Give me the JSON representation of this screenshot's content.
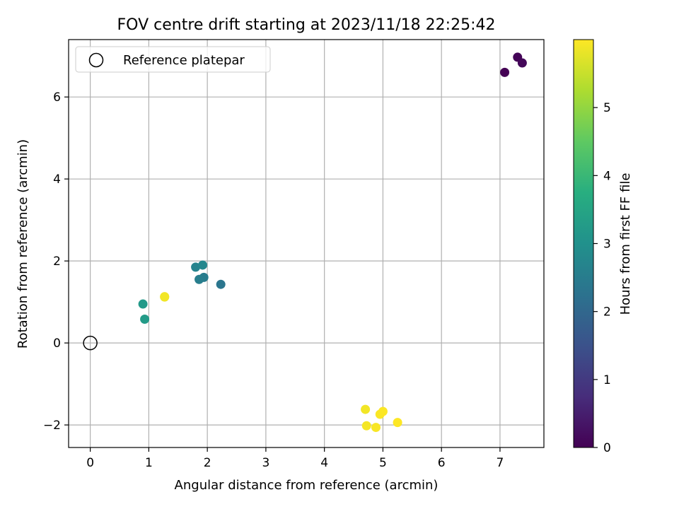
{
  "chart_data": {
    "type": "scatter",
    "title": "FOV centre drift starting at 2023/11/18 22:25:42",
    "xlabel": "Angular distance from reference (arcmin)",
    "ylabel": "Rotation from reference (arcmin)",
    "xlim": [
      -0.37,
      7.75
    ],
    "ylim": [
      -2.55,
      7.4
    ],
    "xticks": [
      0,
      1,
      2,
      3,
      4,
      5,
      6,
      7
    ],
    "yticks": [
      -2,
      0,
      2,
      4,
      6
    ],
    "grid": true,
    "legend": {
      "placement": "top-left",
      "entries": [
        {
          "label": "Reference platepar",
          "marker": "open-circle"
        }
      ]
    },
    "reference_point": {
      "x": 0,
      "y": 0
    },
    "colorbar": {
      "label": "Hours from first FF file",
      "range": [
        0,
        6.0
      ],
      "ticks": [
        0,
        1,
        2,
        3,
        4,
        5
      ],
      "colormap": "viridis"
    },
    "points": [
      {
        "x": 7.08,
        "y": 6.6,
        "hours": 0.0
      },
      {
        "x": 7.3,
        "y": 6.97,
        "hours": 0.05
      },
      {
        "x": 7.38,
        "y": 6.83,
        "hours": 0.1
      },
      {
        "x": 2.23,
        "y": 1.43,
        "hours": 2.35
      },
      {
        "x": 1.94,
        "y": 1.6,
        "hours": 2.5
      },
      {
        "x": 1.86,
        "y": 1.55,
        "hours": 2.55
      },
      {
        "x": 1.8,
        "y": 1.85,
        "hours": 2.65
      },
      {
        "x": 1.92,
        "y": 1.9,
        "hours": 2.75
      },
      {
        "x": 0.9,
        "y": 0.95,
        "hours": 3.2
      },
      {
        "x": 0.93,
        "y": 0.58,
        "hours": 3.25
      },
      {
        "x": 1.27,
        "y": 1.12,
        "hours": 5.85
      },
      {
        "x": 1.27,
        "y": 1.13,
        "hours": 5.9
      },
      {
        "x": 4.7,
        "y": -1.62,
        "hours": 5.9
      },
      {
        "x": 4.72,
        "y": -2.02,
        "hours": 5.92
      },
      {
        "x": 4.88,
        "y": -2.06,
        "hours": 5.95
      },
      {
        "x": 4.95,
        "y": -1.74,
        "hours": 5.97
      },
      {
        "x": 5.0,
        "y": -1.67,
        "hours": 5.98
      },
      {
        "x": 5.25,
        "y": -1.94,
        "hours": 6.0
      }
    ]
  }
}
